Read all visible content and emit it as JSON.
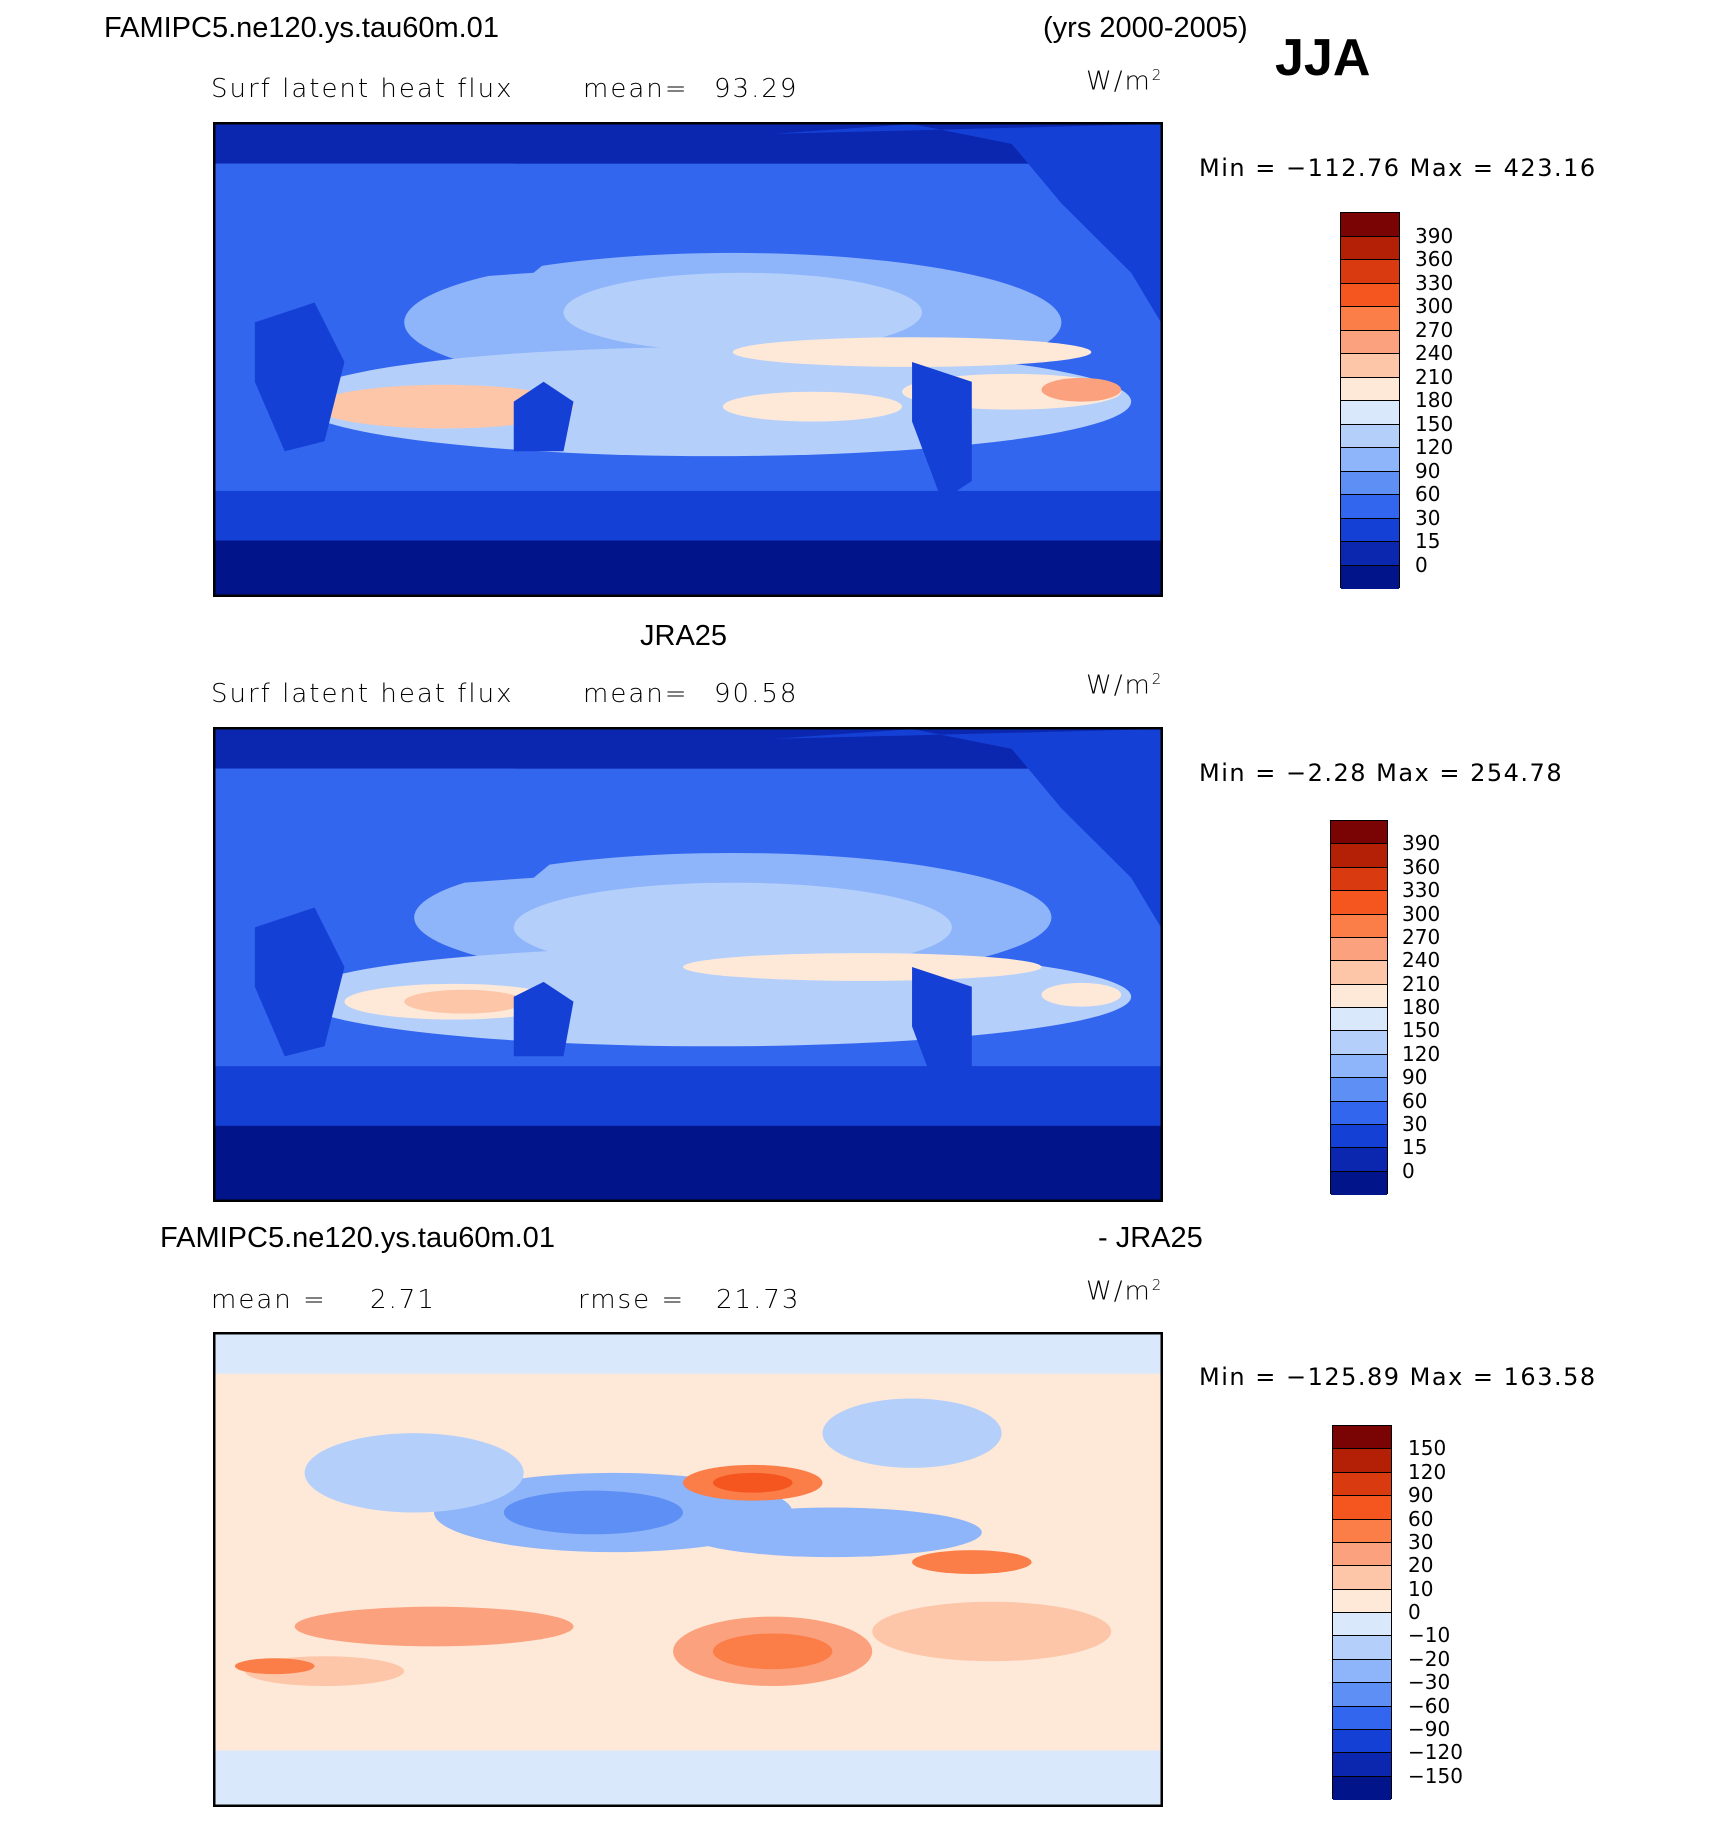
{
  "header": {
    "case_name": "FAMIPC5.ne120.ys.tau60m.01",
    "years": "(yrs 2000-2005)",
    "season": "JJA"
  },
  "panels": [
    {
      "id": "model",
      "title": "",
      "variable": "Surf  latent  heat  flux",
      "stat1_label": "mean=",
      "stat1_value": "93.29",
      "stat2_label": "",
      "stat2_value": "",
      "units": "W/m",
      "units_exp": "2",
      "min_max": "Min  =  −112.76  Max  =  423.16",
      "colorbar": {
        "levels": [
          "390",
          "360",
          "330",
          "300",
          "270",
          "240",
          "210",
          "180",
          "150",
          "120",
          "90",
          "60",
          "30",
          "15",
          "0"
        ],
        "colors": [
          "#7a0403",
          "#b32005",
          "#d93a0f",
          "#f5561f",
          "#fb7d48",
          "#fca17e",
          "#fdc6a8",
          "#fee9d8",
          "#d9e8fb",
          "#b5cffb",
          "#8eb4fa",
          "#5e8ff5",
          "#3366ee",
          "#1440d6",
          "#0b27b0",
          "#02148a"
        ]
      }
    },
    {
      "id": "obs",
      "title": "JRA25",
      "variable": "Surf  latent  heat  flux",
      "stat1_label": "mean=",
      "stat1_value": "90.58",
      "stat2_label": "",
      "stat2_value": "",
      "units": "W/m",
      "units_exp": "2",
      "min_max": "Min  =    −2.28  Max  =  254.78",
      "colorbar": {
        "levels": [
          "390",
          "360",
          "330",
          "300",
          "270",
          "240",
          "210",
          "180",
          "150",
          "120",
          "90",
          "60",
          "30",
          "15",
          "0"
        ],
        "colors": [
          "#7a0403",
          "#b32005",
          "#d93a0f",
          "#f5561f",
          "#fb7d48",
          "#fca17e",
          "#fdc6a8",
          "#fee9d8",
          "#d9e8fb",
          "#b5cffb",
          "#8eb4fa",
          "#5e8ff5",
          "#3366ee",
          "#1440d6",
          "#0b27b0",
          "#02148a"
        ]
      }
    },
    {
      "id": "diff",
      "title_left": "FAMIPC5.ne120.ys.tau60m.01",
      "title_right": "- JRA25",
      "variable": "",
      "stat1_label": "mean  =",
      "stat1_value": "2.71",
      "stat2_label": "rmse  =",
      "stat2_value": "21.73",
      "units": "W/m",
      "units_exp": "2",
      "min_max": "Min  =  −125.89  Max  =  163.58",
      "colorbar": {
        "levels": [
          "150",
          "120",
          "90",
          "60",
          "30",
          "20",
          "10",
          "0",
          "−10",
          "−20",
          "−30",
          "−60",
          "−90",
          "−120",
          "−150"
        ],
        "colors": [
          "#7a0403",
          "#b32005",
          "#d93a0f",
          "#f5561f",
          "#fb7d48",
          "#fca17e",
          "#fdc6a8",
          "#fee9d8",
          "#d9e8fb",
          "#b5cffb",
          "#8eb4fa",
          "#5e8ff5",
          "#3366ee",
          "#1440d6",
          "#0b27b0",
          "#02148a"
        ]
      }
    }
  ]
}
